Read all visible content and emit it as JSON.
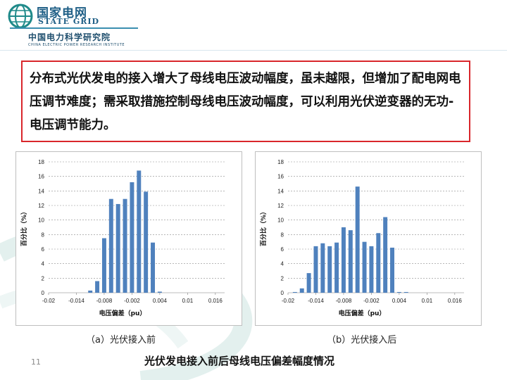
{
  "header": {
    "logo_cn": "国家电网",
    "logo_en": "STATE GRID",
    "institute_cn": "中国电力科学研究院",
    "institute_en": "CHINA ELECTRIC POWER RESEARCH INSTITUTE"
  },
  "statement": "分布式光伏发电的接入增大了母线电压波动幅度，虽未越限，但增加了配电网电压调节难度；需采取措施控制母线电压波动幅度，可以利用光伏逆变器的无功-电压调节能力。",
  "captions": {
    "a": "（a）光伏接入前",
    "b": "（b）光伏接入后",
    "main": "光伏发电接入前后母线电压偏差幅度情况"
  },
  "page_number": "11",
  "colors": {
    "bar": "#4f81bd",
    "border": "#d9262b",
    "brand": "#1f5f86"
  },
  "chart_data": [
    {
      "type": "bar",
      "title": "",
      "xlabel": "电压偏差（pu）",
      "ylabel": "百分比（%）",
      "xlim": [
        -0.02,
        0.018
      ],
      "ylim": [
        0,
        18
      ],
      "x_ticks": [
        "-0.02",
        "-0.014",
        "-0.008",
        "-0.002",
        "0.004",
        "0.01",
        "0.016"
      ],
      "y_ticks": [
        "0",
        "2",
        "4",
        "6",
        "8",
        "10",
        "12",
        "14",
        "16",
        "18"
      ],
      "grid": true,
      "x": [
        -0.0185,
        -0.017,
        -0.0155,
        -0.014,
        -0.0125,
        -0.011,
        -0.0095,
        -0.008,
        -0.0065,
        -0.005,
        -0.0035,
        -0.002,
        -0.0005,
        0.001,
        0.0025,
        0.004,
        0.0055,
        0.007,
        0.0085,
        0.01,
        0.0115,
        0.013,
        0.0145,
        0.016
      ],
      "values": [
        0,
        0,
        0,
        0,
        0,
        0.3,
        1.6,
        7.5,
        12.9,
        12.2,
        12.9,
        15.2,
        16.8,
        13.9,
        6.9,
        0.15,
        0,
        0,
        0,
        0,
        0,
        0,
        0,
        0
      ]
    },
    {
      "type": "bar",
      "title": "",
      "xlabel": "电压偏差（pu）",
      "ylabel": "百分比（%）",
      "xlim": [
        -0.02,
        0.018
      ],
      "ylim": [
        0,
        18
      ],
      "x_ticks": [
        "-0.02",
        "-0.014",
        "-0.008",
        "-0.002",
        "0.004",
        "0.01",
        "0.016"
      ],
      "y_ticks": [
        "0",
        "2",
        "4",
        "6",
        "8",
        "10",
        "12",
        "14",
        "16",
        "18"
      ],
      "grid": true,
      "x": [
        -0.0185,
        -0.017,
        -0.0155,
        -0.014,
        -0.0125,
        -0.011,
        -0.0095,
        -0.008,
        -0.0065,
        -0.005,
        -0.0035,
        -0.002,
        -0.0005,
        0.001,
        0.0025,
        0.004,
        0.0055,
        0.007,
        0.0085,
        0.01,
        0.0115,
        0.013,
        0.0145,
        0.016
      ],
      "values": [
        0.1,
        0.6,
        2.7,
        6.4,
        6.8,
        6.4,
        6.9,
        9.0,
        8.6,
        14.6,
        7.0,
        6.4,
        8.2,
        10.4,
        6.2,
        0.1,
        0.1,
        0,
        0,
        0,
        0,
        0,
        0,
        0
      ]
    }
  ]
}
